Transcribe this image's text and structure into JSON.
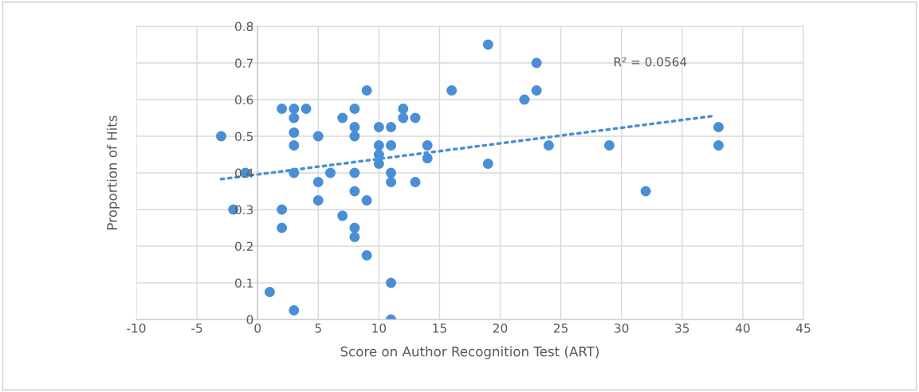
{
  "chart_data": {
    "type": "scatter",
    "xlabel": "Score on Author Recognition Test (ART)",
    "ylabel": "Proportion of Hits",
    "xlim": [
      -10,
      45
    ],
    "xticks": [
      -10,
      -5,
      0,
      5,
      10,
      15,
      20,
      25,
      30,
      35,
      40,
      45
    ],
    "ylim": [
      0,
      0.8
    ],
    "yticks": [
      0,
      0.1,
      0.2,
      0.3,
      0.4,
      0.5,
      0.6,
      0.7,
      0.8
    ],
    "grid": true,
    "marker": "circle",
    "annotations": [
      "R² = 0.0564"
    ],
    "series": [
      {
        "color": "#4a8fd6",
        "x": [
          -3,
          -2,
          -1,
          1,
          2,
          2,
          2,
          3,
          3,
          3,
          3,
          3,
          3,
          4,
          5,
          5,
          5,
          6,
          7,
          7,
          8,
          8,
          8,
          8,
          8,
          8,
          8,
          9,
          9,
          9,
          10,
          10,
          10,
          10,
          11,
          11,
          11,
          11,
          11,
          11,
          12,
          12,
          13,
          13,
          14,
          14,
          16,
          19,
          19,
          22,
          23,
          23,
          24,
          29,
          32,
          38,
          38
        ],
        "values": [
          0.5,
          0.3,
          0.4,
          0.075,
          0.575,
          0.3,
          0.25,
          0.575,
          0.55,
          0.51,
          0.475,
          0.4,
          0.025,
          0.575,
          0.5,
          0.375,
          0.325,
          0.4,
          0.55,
          0.283,
          0.575,
          0.525,
          0.5,
          0.4,
          0.35,
          0.25,
          0.225,
          0.625,
          0.325,
          0.175,
          0.525,
          0.475,
          0.45,
          0.425,
          0.525,
          0.475,
          0.4,
          0.375,
          0.1,
          0.0,
          0.575,
          0.55,
          0.55,
          0.375,
          0.475,
          0.44,
          0.625,
          0.75,
          0.425,
          0.6,
          0.7,
          0.625,
          0.475,
          0.475,
          0.35,
          0.525,
          0.475
        ]
      },
      {
        "type": "line",
        "color": "#4a8fd6",
        "line_style": "dotted",
        "marker": "none",
        "x": [
          -3,
          37.5
        ],
        "values": [
          0.383,
          0.555
        ]
      }
    ]
  }
}
